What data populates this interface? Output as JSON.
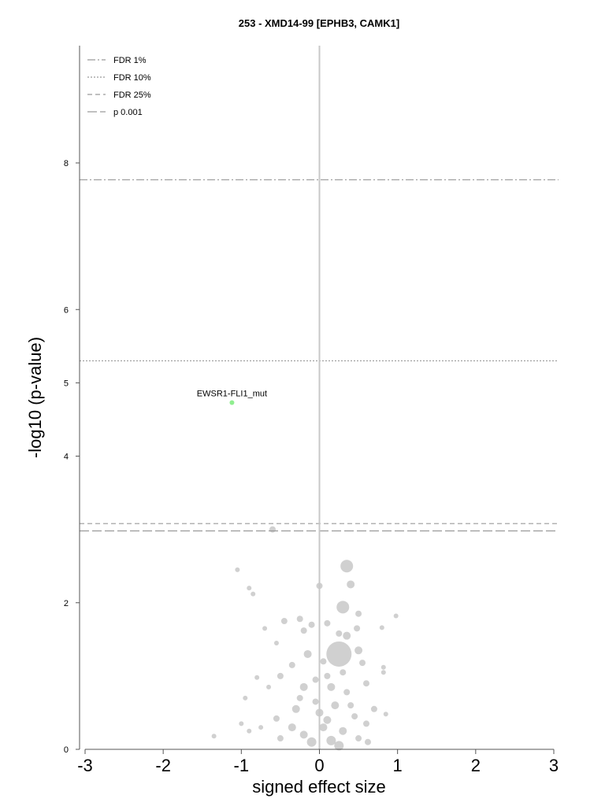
{
  "chart_data": {
    "type": "scatter",
    "title": "253 - XMD14-99 [EPHB3, CAMK1]",
    "xlabel": "signed effect size",
    "ylabel": "-log10 (p-value)",
    "xlim": [
      -3,
      3
    ],
    "ylim": [
      0,
      9.6
    ],
    "xticks": [
      "-3",
      "-2",
      "-1",
      "0",
      "1",
      "2",
      "3"
    ],
    "yticks": [
      "0",
      "2",
      "4",
      "5",
      "6",
      "8"
    ],
    "grid": false,
    "legend_position": "top-left",
    "thresholds": [
      {
        "name": "FDR 1%",
        "y": 7.77,
        "style": "dashdot"
      },
      {
        "name": "FDR 10%",
        "y": 5.3,
        "style": "dotted"
      },
      {
        "name": "FDR 25%",
        "y": 3.08,
        "style": "dashed"
      },
      {
        "name": "p 0.001",
        "y": 2.98,
        "style": "longdash"
      }
    ],
    "highlight": {
      "label": "EWSR1-FLI1_mut",
      "x": -1.12,
      "y": 4.73,
      "color": "#90ee90"
    },
    "series": [
      {
        "color": "#555555",
        "points": [
          [
            -0.6,
            3.0,
            4
          ],
          [
            -1.05,
            2.45,
            3
          ],
          [
            -0.9,
            2.2,
            3
          ],
          [
            -0.85,
            2.12,
            3
          ],
          [
            0.35,
            2.5,
            8
          ],
          [
            0.0,
            2.23,
            4
          ],
          [
            0.4,
            2.25,
            5
          ],
          [
            0.3,
            1.94,
            8
          ],
          [
            0.25,
            1.58,
            4
          ],
          [
            0.1,
            1.72,
            4
          ],
          [
            0.5,
            1.85,
            4
          ],
          [
            0.48,
            1.65,
            4
          ],
          [
            0.8,
            1.66,
            3
          ],
          [
            0.98,
            1.82,
            3
          ],
          [
            -0.45,
            1.75,
            4
          ],
          [
            -0.25,
            1.78,
            4
          ],
          [
            -0.1,
            1.7,
            4
          ],
          [
            -0.2,
            1.62,
            4
          ],
          [
            -0.7,
            1.65,
            3
          ],
          [
            -0.55,
            1.45,
            3
          ],
          [
            0.35,
            1.55,
            5
          ],
          [
            0.25,
            1.3,
            16
          ],
          [
            0.5,
            1.35,
            5
          ],
          [
            0.55,
            1.18,
            4
          ],
          [
            0.82,
            1.12,
            3
          ],
          [
            0.82,
            1.05,
            3
          ],
          [
            0.05,
            1.2,
            4
          ],
          [
            -0.15,
            1.3,
            5
          ],
          [
            -0.35,
            1.15,
            4
          ],
          [
            -0.5,
            1.0,
            4
          ],
          [
            -0.8,
            0.98,
            3
          ],
          [
            0.6,
            0.9,
            4
          ],
          [
            0.15,
            0.85,
            5
          ],
          [
            0.35,
            0.78,
            4
          ],
          [
            -0.2,
            0.85,
            5
          ],
          [
            -0.05,
            0.95,
            4
          ],
          [
            -0.65,
            0.85,
            3
          ],
          [
            -0.95,
            0.7,
            3
          ],
          [
            0.7,
            0.55,
            4
          ],
          [
            0.85,
            0.48,
            3
          ],
          [
            -1.0,
            0.35,
            3
          ],
          [
            -1.35,
            0.18,
            3
          ],
          [
            -0.9,
            0.25,
            3
          ],
          [
            0.2,
            0.6,
            5
          ],
          [
            -0.3,
            0.55,
            5
          ],
          [
            0.45,
            0.45,
            4
          ],
          [
            -0.55,
            0.42,
            4
          ],
          [
            0.6,
            0.35,
            4
          ],
          [
            -0.75,
            0.3,
            3
          ],
          [
            0.0,
            0.5,
            5
          ],
          [
            0.3,
            0.25,
            5
          ],
          [
            -0.2,
            0.2,
            5
          ],
          [
            0.15,
            0.12,
            6
          ],
          [
            -0.1,
            0.1,
            6
          ],
          [
            0.05,
            0.3,
            5
          ],
          [
            -0.35,
            0.3,
            5
          ],
          [
            0.25,
            0.05,
            6
          ],
          [
            0.5,
            0.15,
            4
          ],
          [
            -0.5,
            0.15,
            4
          ],
          [
            0.62,
            0.1,
            4
          ],
          [
            -0.05,
            0.65,
            4
          ],
          [
            0.1,
            0.4,
            5
          ],
          [
            0.4,
            0.6,
            4
          ],
          [
            -0.25,
            0.7,
            4
          ],
          [
            0.3,
            1.05,
            4
          ],
          [
            0.1,
            1.0,
            4
          ]
        ]
      }
    ]
  }
}
